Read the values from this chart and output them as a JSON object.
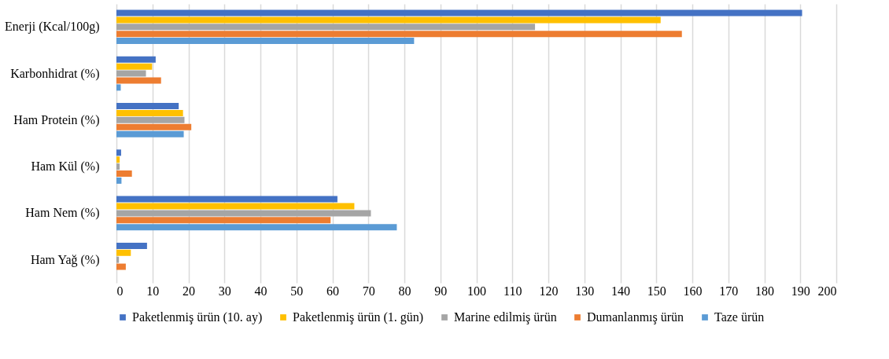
{
  "chart_data": {
    "type": "bar",
    "orientation": "horizontal",
    "categories": [
      "Enerji (Kcal/100g)",
      "Karbonhidrat (%)",
      "Ham Protein (%)",
      "Ham Kül (%)",
      "Ham Nem (%)",
      "Ham Yağ (%)"
    ],
    "series": [
      {
        "name": "Paketlenmiş ürün (10. ay)",
        "color": "#4472c4",
        "values": [
          190.5,
          10.9,
          17.3,
          1.3,
          61.4,
          8.5
        ]
      },
      {
        "name": "Paketlenmiş ürün (1. gün)",
        "color": "#ffc000",
        "values": [
          151.2,
          9.9,
          18.5,
          0.9,
          66.1,
          4.0
        ]
      },
      {
        "name": "Marine edilmiş ürün",
        "color": "#a5a5a5",
        "values": [
          116.3,
          8.2,
          18.9,
          0.9,
          70.7,
          0.7
        ]
      },
      {
        "name": "Dumanlanmış ürün",
        "color": "#ed7d31",
        "values": [
          157.1,
          12.4,
          20.8,
          4.3,
          59.5,
          2.6
        ]
      },
      {
        "name": "Taze ürün",
        "color": "#5b9bd5",
        "values": [
          82.7,
          1.2,
          18.7,
          1.4,
          77.9,
          null
        ]
      }
    ],
    "xlim": [
      0,
      200
    ],
    "xticks": [
      0,
      10,
      20,
      30,
      40,
      50,
      60,
      70,
      80,
      90,
      100,
      110,
      120,
      130,
      140,
      150,
      160,
      170,
      180,
      190,
      200
    ],
    "grid": "x",
    "legend": "bottom"
  }
}
